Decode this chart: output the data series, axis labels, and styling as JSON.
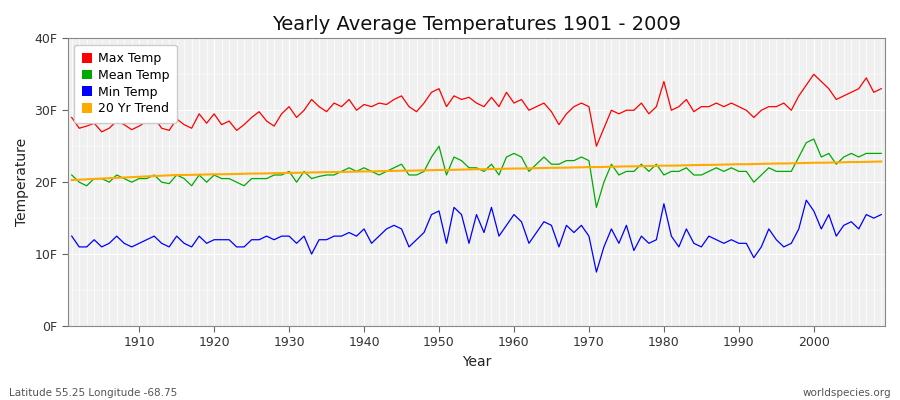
{
  "title": "Yearly Average Temperatures 1901 - 2009",
  "xlabel": "Year",
  "ylabel": "Temperature",
  "lat_lon_label": "Latitude 55.25 Longitude -68.75",
  "watermark": "worldspecies.org",
  "years": [
    1901,
    1902,
    1903,
    1904,
    1905,
    1906,
    1907,
    1908,
    1909,
    1910,
    1911,
    1912,
    1913,
    1914,
    1915,
    1916,
    1917,
    1918,
    1919,
    1920,
    1921,
    1922,
    1923,
    1924,
    1925,
    1926,
    1927,
    1928,
    1929,
    1930,
    1931,
    1932,
    1933,
    1934,
    1935,
    1936,
    1937,
    1938,
    1939,
    1940,
    1941,
    1942,
    1943,
    1944,
    1945,
    1946,
    1947,
    1948,
    1949,
    1950,
    1951,
    1952,
    1953,
    1954,
    1955,
    1956,
    1957,
    1958,
    1959,
    1960,
    1961,
    1962,
    1963,
    1964,
    1965,
    1966,
    1967,
    1968,
    1969,
    1970,
    1971,
    1972,
    1973,
    1974,
    1975,
    1976,
    1977,
    1978,
    1979,
    1980,
    1981,
    1982,
    1983,
    1984,
    1985,
    1986,
    1987,
    1988,
    1989,
    1990,
    1991,
    1992,
    1993,
    1994,
    1995,
    1996,
    1997,
    1998,
    1999,
    2000,
    2001,
    2002,
    2003,
    2004,
    2005,
    2006,
    2007,
    2008,
    2009
  ],
  "max_temp": [
    29.0,
    27.5,
    27.8,
    28.2,
    27.0,
    27.5,
    28.5,
    28.0,
    27.3,
    27.8,
    28.5,
    29.0,
    27.5,
    27.2,
    28.8,
    28.0,
    27.5,
    29.5,
    28.2,
    29.5,
    28.0,
    28.5,
    27.2,
    28.0,
    29.0,
    29.8,
    28.5,
    27.8,
    29.5,
    30.5,
    29.0,
    30.0,
    31.5,
    30.5,
    29.8,
    31.0,
    30.5,
    31.5,
    30.0,
    30.8,
    30.5,
    31.0,
    30.8,
    31.5,
    32.0,
    30.5,
    29.8,
    31.0,
    32.5,
    33.0,
    30.5,
    32.0,
    31.5,
    31.8,
    31.0,
    30.5,
    31.8,
    30.5,
    32.5,
    31.0,
    31.5,
    30.0,
    30.5,
    31.0,
    29.8,
    28.0,
    29.5,
    30.5,
    31.0,
    30.5,
    25.0,
    27.5,
    30.0,
    29.5,
    30.0,
    30.0,
    31.0,
    29.5,
    30.5,
    34.0,
    30.0,
    30.5,
    31.5,
    29.8,
    30.5,
    30.5,
    31.0,
    30.5,
    31.0,
    30.5,
    30.0,
    29.0,
    30.0,
    30.5,
    30.5,
    31.0,
    30.0,
    32.0,
    33.5,
    35.0,
    34.0,
    33.0,
    31.5,
    32.0,
    32.5,
    33.0,
    34.5,
    32.5,
    33.0
  ],
  "mean_temp": [
    21.0,
    20.0,
    19.5,
    20.5,
    20.5,
    20.0,
    21.0,
    20.5,
    20.0,
    20.5,
    20.5,
    21.0,
    20.0,
    19.8,
    21.0,
    20.5,
    19.5,
    21.0,
    20.0,
    21.0,
    20.5,
    20.5,
    20.0,
    19.5,
    20.5,
    20.5,
    20.5,
    21.0,
    21.0,
    21.5,
    20.0,
    21.5,
    20.5,
    20.8,
    21.0,
    21.0,
    21.5,
    22.0,
    21.5,
    22.0,
    21.5,
    21.0,
    21.5,
    22.0,
    22.5,
    21.0,
    21.0,
    21.5,
    23.5,
    25.0,
    21.0,
    23.5,
    23.0,
    22.0,
    22.0,
    21.5,
    22.5,
    21.0,
    23.5,
    24.0,
    23.5,
    21.5,
    22.5,
    23.5,
    22.5,
    22.5,
    23.0,
    23.0,
    23.5,
    23.0,
    16.5,
    20.0,
    22.5,
    21.0,
    21.5,
    21.5,
    22.5,
    21.5,
    22.5,
    21.0,
    21.5,
    21.5,
    22.0,
    21.0,
    21.0,
    21.5,
    22.0,
    21.5,
    22.0,
    21.5,
    21.5,
    20.0,
    21.0,
    22.0,
    21.5,
    21.5,
    21.5,
    23.5,
    25.5,
    26.0,
    23.5,
    24.0,
    22.5,
    23.5,
    24.0,
    23.5,
    24.0,
    24.0,
    24.0
  ],
  "min_temp": [
    12.5,
    11.0,
    11.0,
    12.0,
    11.0,
    11.5,
    12.5,
    11.5,
    11.0,
    11.5,
    12.0,
    12.5,
    11.5,
    11.0,
    12.5,
    11.5,
    11.0,
    12.5,
    11.5,
    12.0,
    12.0,
    12.0,
    11.0,
    11.0,
    12.0,
    12.0,
    12.5,
    12.0,
    12.5,
    12.5,
    11.5,
    12.5,
    10.0,
    12.0,
    12.0,
    12.5,
    12.5,
    13.0,
    12.5,
    13.5,
    11.5,
    12.5,
    13.5,
    14.0,
    13.5,
    11.0,
    12.0,
    13.0,
    15.5,
    16.0,
    11.5,
    16.5,
    15.5,
    11.5,
    15.5,
    13.0,
    16.5,
    12.5,
    14.0,
    15.5,
    14.5,
    11.5,
    13.0,
    14.5,
    14.0,
    11.0,
    14.0,
    13.0,
    14.0,
    12.5,
    7.5,
    11.0,
    13.5,
    11.5,
    14.0,
    10.5,
    12.5,
    11.5,
    12.0,
    17.0,
    12.5,
    11.0,
    13.5,
    11.5,
    11.0,
    12.5,
    12.0,
    11.5,
    12.0,
    11.5,
    11.5,
    9.5,
    11.0,
    13.5,
    12.0,
    11.0,
    11.5,
    13.5,
    17.5,
    16.0,
    13.5,
    15.5,
    12.5,
    14.0,
    14.5,
    13.5,
    15.5,
    15.0,
    15.5
  ],
  "trend": [
    20.3,
    20.35,
    20.4,
    20.45,
    20.5,
    20.55,
    20.6,
    20.65,
    20.7,
    20.75,
    20.8,
    20.85,
    20.9,
    20.95,
    21.0,
    21.0,
    21.02,
    21.05,
    21.07,
    21.1,
    21.1,
    21.12,
    21.15,
    21.17,
    21.2,
    21.2,
    21.22,
    21.25,
    21.27,
    21.3,
    21.3,
    21.32,
    21.35,
    21.37,
    21.4,
    21.4,
    21.42,
    21.45,
    21.47,
    21.5,
    21.5,
    21.52,
    21.55,
    21.57,
    21.6,
    21.6,
    21.62,
    21.65,
    21.67,
    21.7,
    21.7,
    21.72,
    21.75,
    21.77,
    21.8,
    21.8,
    21.82,
    21.85,
    21.87,
    21.9,
    21.9,
    21.92,
    21.95,
    21.97,
    22.0,
    22.0,
    22.02,
    22.05,
    22.07,
    22.1,
    22.1,
    22.12,
    22.15,
    22.17,
    22.2,
    22.2,
    22.22,
    22.25,
    22.27,
    22.3,
    22.3,
    22.32,
    22.35,
    22.37,
    22.4,
    22.4,
    22.42,
    22.45,
    22.47,
    22.5,
    22.5,
    22.52,
    22.55,
    22.57,
    22.6,
    22.6,
    22.62,
    22.65,
    22.67,
    22.7,
    22.7,
    22.72,
    22.75,
    22.77,
    22.8,
    22.8,
    22.82,
    22.85,
    22.87
  ],
  "max_color": "#ff0000",
  "mean_color": "#00aa00",
  "min_color": "#0000ff",
  "trend_color": "#ffaa00",
  "bg_color": "#ffffff",
  "plot_bg_color": "#f0f0f0",
  "grid_color": "#ffffff",
  "ylim": [
    0,
    40
  ],
  "yticks": [
    0,
    10,
    20,
    30,
    40
  ],
  "ytick_labels": [
    "0F",
    "10F",
    "20F",
    "30F",
    "40F"
  ],
  "xticks": [
    1910,
    1920,
    1930,
    1940,
    1950,
    1960,
    1970,
    1980,
    1990,
    2000
  ],
  "title_fontsize": 14,
  "axis_fontsize": 10,
  "tick_fontsize": 9,
  "legend_fontsize": 9
}
